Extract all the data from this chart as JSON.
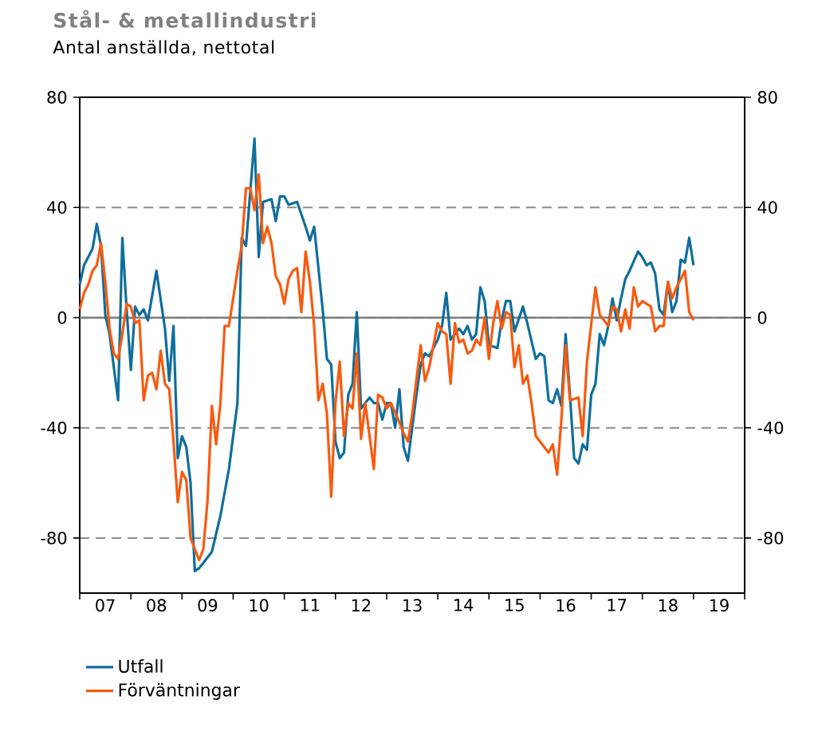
{
  "chart_data": {
    "type": "line",
    "title": "Stål- & metallindustri",
    "subtitle": "Antal anställda, nettotal",
    "xlim": [
      "2007",
      "2020"
    ],
    "ylim": [
      -100,
      80
    ],
    "y2lim": [
      -100,
      80
    ],
    "xticks": [
      {
        "value": "2007",
        "label": null
      },
      {
        "value": "2008",
        "label": null
      },
      {
        "value": "2009",
        "label": null
      },
      {
        "value": "2010",
        "label": null
      },
      {
        "value": "2011",
        "label": null
      },
      {
        "value": "2012",
        "label": null
      },
      {
        "value": "2013",
        "label": null
      },
      {
        "value": "2014",
        "label": null
      },
      {
        "value": "2015",
        "label": null
      },
      {
        "value": "2016",
        "label": null
      },
      {
        "value": "2017",
        "label": null
      },
      {
        "value": "2018",
        "label": null
      },
      {
        "value": "2019",
        "label": null
      },
      {
        "value": "2020",
        "label": null
      },
      {
        "value": "2007-07",
        "label": "07"
      },
      {
        "value": "2008-07",
        "label": "08"
      },
      {
        "value": "2009-07",
        "label": "09"
      },
      {
        "value": "2010-07",
        "label": "10"
      },
      {
        "value": "2011-07",
        "label": "11"
      },
      {
        "value": "2012-07",
        "label": "12"
      },
      {
        "value": "2013-07",
        "label": "13"
      },
      {
        "value": "2014-07",
        "label": "14"
      },
      {
        "value": "2015-07",
        "label": "15"
      },
      {
        "value": "2016-07",
        "label": "16"
      },
      {
        "value": "2017-07",
        "label": "17"
      },
      {
        "value": "2018-07",
        "label": "18"
      },
      {
        "value": "2019-07",
        "label": "19"
      }
    ],
    "yticks": [
      -80,
      -40,
      0,
      40,
      80
    ],
    "y2ticks": [
      -80,
      -40,
      0,
      40,
      80
    ],
    "grid": "y",
    "legend": "bottom",
    "marker": "none",
    "line_style": "solid",
    "ref_lines": [
      {
        "axis": "y",
        "value": 0,
        "color": "#808080",
        "line_style": "solid"
      }
    ],
    "series": [
      {
        "name": "Utfall",
        "color": "#0f6e9c",
        "x": [
          "2007-01",
          "2007-02",
          "2007-04",
          "2007-05",
          "2007-06",
          "2007-07",
          "2007-08",
          "2007-10",
          "2007-11",
          "2007-12",
          "2008-01",
          "2008-02",
          "2008-03",
          "2008-04",
          "2008-05",
          "2008-07",
          "2008-09",
          "2008-10",
          "2008-11",
          "2008-12",
          "2009-01",
          "2009-02",
          "2009-03",
          "2009-04",
          "2009-05",
          "2009-08",
          "2009-10",
          "2009-12",
          "2010-02",
          "2010-03",
          "2010-04",
          "2010-06",
          "2010-07",
          "2010-08",
          "2010-10",
          "2010-11",
          "2010-12",
          "2011-01",
          "2011-02",
          "2011-04",
          "2011-06",
          "2011-07",
          "2011-08",
          "2011-10",
          "2011-11",
          "2011-12",
          "2012-01",
          "2012-02",
          "2012-03",
          "2012-04",
          "2012-05",
          "2012-06",
          "2012-07",
          "2012-08",
          "2012-09",
          "2012-10",
          "2012-11",
          "2012-12",
          "2013-01",
          "2013-02",
          "2013-03",
          "2013-04",
          "2013-05",
          "2013-06",
          "2013-08",
          "2013-09",
          "2013-10",
          "2013-11",
          "2014-01",
          "2014-02",
          "2014-03",
          "2014-04",
          "2014-06",
          "2014-07",
          "2014-08",
          "2014-09",
          "2014-10",
          "2014-11",
          "2014-12",
          "2015-01",
          "2015-03",
          "2015-04",
          "2015-05",
          "2015-06",
          "2015-07",
          "2015-09",
          "2015-10",
          "2015-12",
          "2016-01",
          "2016-02",
          "2016-03",
          "2016-04",
          "2016-05",
          "2016-06",
          "2016-07",
          "2016-08",
          "2016-09",
          "2016-10",
          "2016-11",
          "2016-12",
          "2017-01",
          "2017-02",
          "2017-03",
          "2017-04",
          "2017-05",
          "2017-06",
          "2017-07",
          "2017-08",
          "2017-09",
          "2017-10",
          "2017-12",
          "2018-01",
          "2018-02",
          "2018-03",
          "2018-04",
          "2018-05",
          "2018-06",
          "2018-07",
          "2018-08",
          "2018-09",
          "2018-10",
          "2018-11",
          "2018-12",
          "2019-01"
        ],
        "values": [
          12,
          19,
          25,
          34,
          26,
          1,
          -6,
          -30,
          29,
          3,
          -19,
          4,
          1,
          3,
          -1,
          17,
          -4,
          -23,
          -3,
          -51,
          -43,
          -47,
          -60,
          -92,
          -91,
          -85,
          -72,
          -55,
          -31,
          29,
          26,
          65,
          22,
          42,
          43,
          35,
          44,
          44,
          41,
          42,
          33,
          28,
          33,
          3,
          -15,
          -17,
          -45,
          -51,
          -49,
          -28,
          -24,
          2,
          -33,
          -31,
          -29,
          -31,
          -31,
          -37,
          -31,
          -31,
          -40,
          -26,
          -47,
          -52,
          -28,
          -17,
          -13,
          -14,
          -8,
          -3,
          9,
          -8,
          -4,
          -6,
          -3,
          -8,
          -6,
          11,
          6,
          -10,
          -11,
          -1,
          6,
          6,
          -5,
          4,
          -2,
          -15,
          -13,
          -14,
          -30,
          -31,
          -26,
          -32,
          -6,
          -28,
          -51,
          -53,
          -46,
          -48,
          -28,
          -24,
          -6,
          -10,
          -3,
          7,
          -1,
          7,
          14,
          17,
          24,
          22,
          19,
          20,
          16,
          3,
          1,
          13,
          2,
          6,
          21,
          20,
          29,
          19
        ]
      },
      {
        "name": "Förväntningar",
        "color": "#f85a0f",
        "x": [
          "2007-01",
          "2007-02",
          "2007-03",
          "2007-04",
          "2007-05",
          "2007-06",
          "2007-07",
          "2007-08",
          "2007-09",
          "2007-10",
          "2007-11",
          "2007-12",
          "2008-01",
          "2008-02",
          "2008-03",
          "2008-04",
          "2008-05",
          "2008-06",
          "2008-07",
          "2008-08",
          "2008-09",
          "2008-10",
          "2008-11",
          "2008-12",
          "2009-01",
          "2009-02",
          "2009-03",
          "2009-04",
          "2009-05",
          "2009-06",
          "2009-07",
          "2009-08",
          "2009-09",
          "2009-10",
          "2009-11",
          "2009-12",
          "2010-01",
          "2010-02",
          "2010-03",
          "2010-04",
          "2010-05",
          "2010-06",
          "2010-07",
          "2010-08",
          "2010-09",
          "2010-10",
          "2010-11",
          "2010-12",
          "2011-01",
          "2011-02",
          "2011-03",
          "2011-04",
          "2011-05",
          "2011-06",
          "2011-07",
          "2011-08",
          "2011-09",
          "2011-10",
          "2011-11",
          "2011-12",
          "2012-01",
          "2012-02",
          "2012-03",
          "2012-04",
          "2012-05",
          "2012-06",
          "2012-07",
          "2012-08",
          "2012-10",
          "2012-11",
          "2012-12",
          "2013-01",
          "2013-02",
          "2013-04",
          "2013-05",
          "2013-06",
          "2013-07",
          "2013-09",
          "2013-10",
          "2013-11",
          "2014-01",
          "2014-02",
          "2014-03",
          "2014-04",
          "2014-05",
          "2014-06",
          "2014-07",
          "2014-08",
          "2014-09",
          "2014-10",
          "2014-11",
          "2014-12",
          "2015-01",
          "2015-02",
          "2015-03",
          "2015-04",
          "2015-05",
          "2015-06",
          "2015-07",
          "2015-08",
          "2015-09",
          "2015-10",
          "2015-11",
          "2015-12",
          "2016-01",
          "2016-03",
          "2016-04",
          "2016-05",
          "2016-06",
          "2016-07",
          "2016-08",
          "2016-10",
          "2016-11",
          "2016-12",
          "2017-02",
          "2017-03",
          "2017-04",
          "2017-05",
          "2017-06",
          "2017-07",
          "2017-08",
          "2017-09",
          "2017-10",
          "2017-11",
          "2017-12",
          "2018-01",
          "2018-03",
          "2018-04",
          "2018-05",
          "2018-06",
          "2018-07",
          "2018-08",
          "2018-09",
          "2018-11",
          "2018-12",
          "2019-01"
        ],
        "values": [
          3,
          9,
          12,
          17,
          19,
          27,
          13,
          -4,
          -13,
          -15,
          -6,
          5,
          4,
          -2,
          -1,
          -30,
          -21,
          -20,
          -26,
          -12,
          -24,
          -26,
          -45,
          -67,
          -56,
          -59,
          -80,
          -84,
          -88,
          -84,
          -66,
          -32,
          -46,
          -31,
          -3,
          -3,
          7,
          17,
          26,
          47,
          47,
          39,
          52,
          27,
          33,
          27,
          15,
          12,
          5,
          14,
          17,
          18,
          2,
          24,
          13,
          -3,
          -30,
          -24,
          -35,
          -65,
          -31,
          -16,
          -43,
          -31,
          -33,
          -13,
          -44,
          -31,
          -55,
          -28,
          -29,
          -33,
          -31,
          -38,
          -42,
          -45,
          -35,
          -10,
          -23,
          -18,
          -2,
          -5,
          -6,
          -24,
          -2,
          -9,
          -8,
          -13,
          -12,
          -8,
          -10,
          0,
          -15,
          -2,
          6,
          -4,
          2,
          1,
          -18,
          -10,
          -24,
          -21,
          -31,
          -43,
          -45,
          -49,
          -46,
          -57,
          -37,
          -10,
          -30,
          -29,
          -43,
          -16,
          11,
          1,
          -1,
          -3,
          4,
          3,
          -5,
          3,
          -4,
          11,
          4,
          6,
          4,
          -5,
          -3,
          -3,
          13,
          7,
          11,
          17,
          2,
          -1
        ]
      }
    ]
  }
}
